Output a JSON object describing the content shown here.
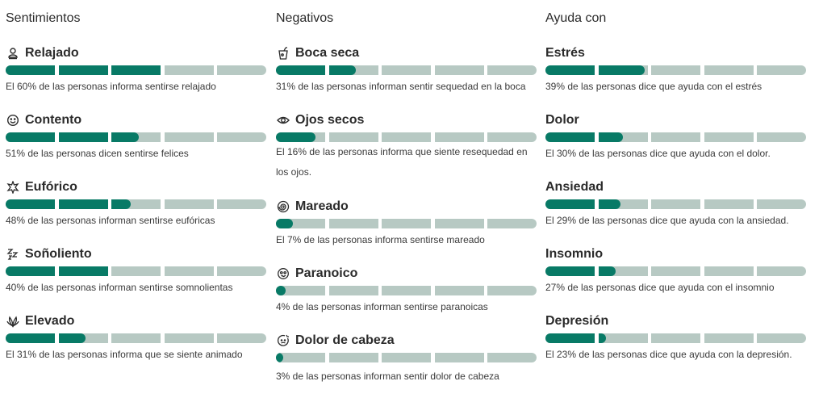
{
  "columns": [
    {
      "title": "Sentimientos",
      "items": [
        {
          "icon": "relaxed-icon",
          "label": "Relajado",
          "percent": 60,
          "desc": "El 60% de las personas informa sentirse relajado"
        },
        {
          "icon": "smile-icon",
          "label": "Contento",
          "percent": 51,
          "desc": "51% de las personas dicen sentirse felices"
        },
        {
          "icon": "sparkle-icon",
          "label": "Eufórico",
          "percent": 48,
          "desc": "48% de las personas informan sentirse eufóricas"
        },
        {
          "icon": "sleepy-icon",
          "label": "Soñoliento",
          "percent": 40,
          "desc": "40% de las personas informan sentirse somnolientas"
        },
        {
          "icon": "leaves-icon",
          "label": "Elevado",
          "percent": 31,
          "desc": "El 31% de las personas informa que se siente animado"
        }
      ]
    },
    {
      "title": "Negativos",
      "items": [
        {
          "icon": "drink-icon",
          "label": "Boca seca",
          "percent": 31,
          "desc": "31% de las personas informan sentir sequedad en la boca"
        },
        {
          "icon": "eye-icon",
          "label": "Ojos secos",
          "percent": 16,
          "desc": "El 16% de las personas informa que siente resequedad en los ojos."
        },
        {
          "icon": "spiral-icon",
          "label": "Mareado",
          "percent": 7,
          "desc": "El 7% de las personas informa sentirse mareado"
        },
        {
          "icon": "paranoid-face-icon",
          "label": "Paranoico",
          "percent": 4,
          "desc": "4% de las personas informan sentirse paranoicas"
        },
        {
          "icon": "headache-icon",
          "label": "Dolor de cabeza",
          "percent": 3,
          "desc": "3% de las personas informan sentir dolor de cabeza"
        }
      ]
    },
    {
      "title": "Ayuda con",
      "items": [
        {
          "label": "Estrés",
          "percent": 39,
          "desc": "39% de las personas dice que ayuda con el estrés"
        },
        {
          "label": "Dolor",
          "percent": 30,
          "desc": "El 30% de las personas dice que ayuda con el dolor."
        },
        {
          "label": "Ansiedad",
          "percent": 29,
          "desc": "El 29% de las personas dice que ayuda con la ansiedad."
        },
        {
          "label": "Insomnio",
          "percent": 27,
          "desc": "27% de las personas dice que ayuda con el insomnio"
        },
        {
          "label": "Depresión",
          "percent": 23,
          "desc": "El 23% de las personas dice que ayuda con la depresión."
        }
      ]
    }
  ],
  "colors": {
    "fill": "#087a66",
    "track": "#b7c9c3",
    "text": "#2b2b2b"
  }
}
